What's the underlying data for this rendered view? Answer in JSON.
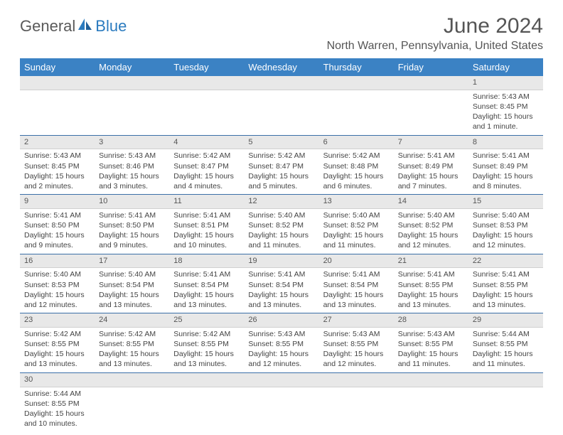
{
  "logo": {
    "general": "General",
    "blue": "Blue"
  },
  "title": "June 2024",
  "location": "North Warren, Pennsylvania, United States",
  "header_bg": "#3b82c4",
  "weekday_labels": [
    "Sunday",
    "Monday",
    "Tuesday",
    "Wednesday",
    "Thursday",
    "Friday",
    "Saturday"
  ],
  "days": {
    "1": {
      "sr": "Sunrise: 5:43 AM",
      "ss": "Sunset: 8:45 PM",
      "dl": "Daylight: 15 hours and 1 minute."
    },
    "2": {
      "sr": "Sunrise: 5:43 AM",
      "ss": "Sunset: 8:45 PM",
      "dl": "Daylight: 15 hours and 2 minutes."
    },
    "3": {
      "sr": "Sunrise: 5:43 AM",
      "ss": "Sunset: 8:46 PM",
      "dl": "Daylight: 15 hours and 3 minutes."
    },
    "4": {
      "sr": "Sunrise: 5:42 AM",
      "ss": "Sunset: 8:47 PM",
      "dl": "Daylight: 15 hours and 4 minutes."
    },
    "5": {
      "sr": "Sunrise: 5:42 AM",
      "ss": "Sunset: 8:47 PM",
      "dl": "Daylight: 15 hours and 5 minutes."
    },
    "6": {
      "sr": "Sunrise: 5:42 AM",
      "ss": "Sunset: 8:48 PM",
      "dl": "Daylight: 15 hours and 6 minutes."
    },
    "7": {
      "sr": "Sunrise: 5:41 AM",
      "ss": "Sunset: 8:49 PM",
      "dl": "Daylight: 15 hours and 7 minutes."
    },
    "8": {
      "sr": "Sunrise: 5:41 AM",
      "ss": "Sunset: 8:49 PM",
      "dl": "Daylight: 15 hours and 8 minutes."
    },
    "9": {
      "sr": "Sunrise: 5:41 AM",
      "ss": "Sunset: 8:50 PM",
      "dl": "Daylight: 15 hours and 9 minutes."
    },
    "10": {
      "sr": "Sunrise: 5:41 AM",
      "ss": "Sunset: 8:50 PM",
      "dl": "Daylight: 15 hours and 9 minutes."
    },
    "11": {
      "sr": "Sunrise: 5:41 AM",
      "ss": "Sunset: 8:51 PM",
      "dl": "Daylight: 15 hours and 10 minutes."
    },
    "12": {
      "sr": "Sunrise: 5:40 AM",
      "ss": "Sunset: 8:52 PM",
      "dl": "Daylight: 15 hours and 11 minutes."
    },
    "13": {
      "sr": "Sunrise: 5:40 AM",
      "ss": "Sunset: 8:52 PM",
      "dl": "Daylight: 15 hours and 11 minutes."
    },
    "14": {
      "sr": "Sunrise: 5:40 AM",
      "ss": "Sunset: 8:52 PM",
      "dl": "Daylight: 15 hours and 12 minutes."
    },
    "15": {
      "sr": "Sunrise: 5:40 AM",
      "ss": "Sunset: 8:53 PM",
      "dl": "Daylight: 15 hours and 12 minutes."
    },
    "16": {
      "sr": "Sunrise: 5:40 AM",
      "ss": "Sunset: 8:53 PM",
      "dl": "Daylight: 15 hours and 12 minutes."
    },
    "17": {
      "sr": "Sunrise: 5:40 AM",
      "ss": "Sunset: 8:54 PM",
      "dl": "Daylight: 15 hours and 13 minutes."
    },
    "18": {
      "sr": "Sunrise: 5:41 AM",
      "ss": "Sunset: 8:54 PM",
      "dl": "Daylight: 15 hours and 13 minutes."
    },
    "19": {
      "sr": "Sunrise: 5:41 AM",
      "ss": "Sunset: 8:54 PM",
      "dl": "Daylight: 15 hours and 13 minutes."
    },
    "20": {
      "sr": "Sunrise: 5:41 AM",
      "ss": "Sunset: 8:54 PM",
      "dl": "Daylight: 15 hours and 13 minutes."
    },
    "21": {
      "sr": "Sunrise: 5:41 AM",
      "ss": "Sunset: 8:55 PM",
      "dl": "Daylight: 15 hours and 13 minutes."
    },
    "22": {
      "sr": "Sunrise: 5:41 AM",
      "ss": "Sunset: 8:55 PM",
      "dl": "Daylight: 15 hours and 13 minutes."
    },
    "23": {
      "sr": "Sunrise: 5:42 AM",
      "ss": "Sunset: 8:55 PM",
      "dl": "Daylight: 15 hours and 13 minutes."
    },
    "24": {
      "sr": "Sunrise: 5:42 AM",
      "ss": "Sunset: 8:55 PM",
      "dl": "Daylight: 15 hours and 13 minutes."
    },
    "25": {
      "sr": "Sunrise: 5:42 AM",
      "ss": "Sunset: 8:55 PM",
      "dl": "Daylight: 15 hours and 13 minutes."
    },
    "26": {
      "sr": "Sunrise: 5:43 AM",
      "ss": "Sunset: 8:55 PM",
      "dl": "Daylight: 15 hours and 12 minutes."
    },
    "27": {
      "sr": "Sunrise: 5:43 AM",
      "ss": "Sunset: 8:55 PM",
      "dl": "Daylight: 15 hours and 12 minutes."
    },
    "28": {
      "sr": "Sunrise: 5:43 AM",
      "ss": "Sunset: 8:55 PM",
      "dl": "Daylight: 15 hours and 11 minutes."
    },
    "29": {
      "sr": "Sunrise: 5:44 AM",
      "ss": "Sunset: 8:55 PM",
      "dl": "Daylight: 15 hours and 11 minutes."
    },
    "30": {
      "sr": "Sunrise: 5:44 AM",
      "ss": "Sunset: 8:55 PM",
      "dl": "Daylight: 15 hours and 10 minutes."
    }
  },
  "nums": {
    "1": "1",
    "2": "2",
    "3": "3",
    "4": "4",
    "5": "5",
    "6": "6",
    "7": "7",
    "8": "8",
    "9": "9",
    "10": "10",
    "11": "11",
    "12": "12",
    "13": "13",
    "14": "14",
    "15": "15",
    "16": "16",
    "17": "17",
    "18": "18",
    "19": "19",
    "20": "20",
    "21": "21",
    "22": "22",
    "23": "23",
    "24": "24",
    "25": "25",
    "26": "26",
    "27": "27",
    "28": "28",
    "29": "29",
    "30": "30"
  }
}
